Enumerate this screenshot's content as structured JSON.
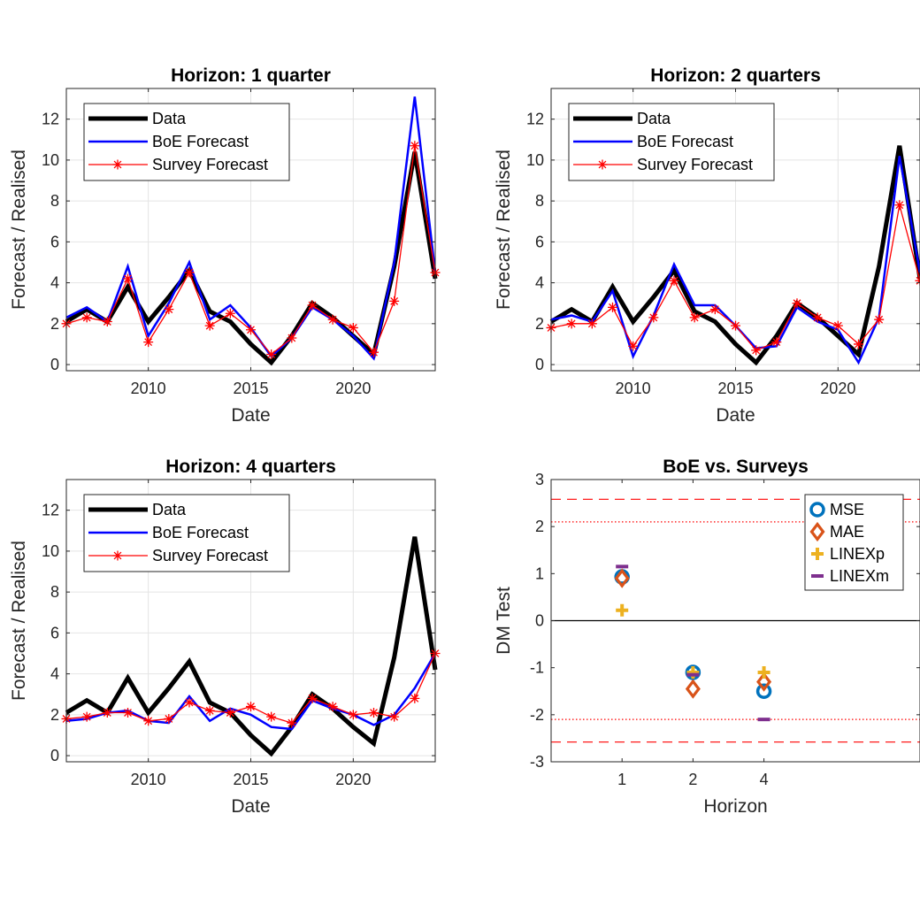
{
  "chart_data": [
    {
      "type": "line",
      "title": "Horizon: 1 quarter",
      "xlabel": "Date",
      "ylabel": "Forecast / Realised",
      "xlim": [
        2006,
        2024
      ],
      "ylim": [
        -0.3,
        13.5
      ],
      "xticks": [
        2010,
        2015,
        2020
      ],
      "yticks": [
        0,
        2,
        4,
        6,
        8,
        10,
        12
      ],
      "grid": true,
      "legend_position": "top-left",
      "x": [
        2006,
        2007,
        2008,
        2009,
        2010,
        2011,
        2012,
        2013,
        2014,
        2015,
        2016,
        2017,
        2018,
        2019,
        2020,
        2021,
        2022,
        2023,
        2024
      ],
      "series": [
        {
          "name": "Data",
          "color": "#000000",
          "style": "thick",
          "values": [
            2.1,
            2.7,
            2.1,
            3.8,
            2.1,
            3.3,
            4.6,
            2.6,
            2.1,
            1.0,
            0.1,
            1.4,
            3.0,
            2.3,
            1.4,
            0.5,
            4.8,
            10.4,
            4.2
          ]
        },
        {
          "name": "BoE Forecast",
          "color": "#0000ff",
          "style": "line",
          "values": [
            2.3,
            2.8,
            2.1,
            4.8,
            1.4,
            3.0,
            5.0,
            2.2,
            2.9,
            1.8,
            0.4,
            1.3,
            2.8,
            2.2,
            1.4,
            0.3,
            5.0,
            13.1,
            4.5
          ]
        },
        {
          "name": "Survey Forecast",
          "color": "#ff0000",
          "style": "star",
          "values": [
            2.0,
            2.3,
            2.1,
            4.2,
            1.1,
            2.7,
            4.5,
            1.9,
            2.5,
            1.7,
            0.5,
            1.3,
            2.9,
            2.2,
            1.8,
            0.6,
            3.1,
            10.7,
            4.5
          ]
        }
      ]
    },
    {
      "type": "line",
      "title": "Horizon: 2 quarters",
      "xlabel": "Date",
      "ylabel": "Forecast / Realised",
      "xlim": [
        2006,
        2024
      ],
      "ylim": [
        -0.3,
        13.5
      ],
      "xticks": [
        2010,
        2015,
        2020
      ],
      "yticks": [
        0,
        2,
        4,
        6,
        8,
        10,
        12
      ],
      "grid": true,
      "legend_position": "top-left",
      "x": [
        2006,
        2007,
        2008,
        2009,
        2010,
        2011,
        2012,
        2013,
        2014,
        2015,
        2016,
        2017,
        2018,
        2019,
        2020,
        2021,
        2022,
        2023,
        2024
      ],
      "series": [
        {
          "name": "Data",
          "color": "#000000",
          "style": "thick",
          "values": [
            2.1,
            2.7,
            2.1,
            3.8,
            2.1,
            3.3,
            4.6,
            2.6,
            2.1,
            1.0,
            0.1,
            1.4,
            3.0,
            2.3,
            1.4,
            0.5,
            4.8,
            10.7,
            4.2
          ]
        },
        {
          "name": "BoE Forecast",
          "color": "#0000ff",
          "style": "line",
          "values": [
            2.2,
            2.4,
            2.1,
            3.6,
            0.4,
            2.4,
            4.9,
            2.9,
            2.9,
            1.9,
            0.8,
            0.9,
            2.8,
            2.1,
            1.7,
            0.1,
            2.3,
            10.2,
            4.5
          ]
        },
        {
          "name": "Survey Forecast",
          "color": "#ff0000",
          "style": "star",
          "values": [
            1.8,
            2.0,
            2.0,
            2.8,
            0.9,
            2.3,
            4.1,
            2.3,
            2.7,
            1.9,
            0.7,
            1.1,
            3.0,
            2.3,
            1.9,
            1.0,
            2.2,
            7.8,
            4.1
          ]
        }
      ]
    },
    {
      "type": "line",
      "title": "Horizon: 4 quarters",
      "xlabel": "Date",
      "ylabel": "Forecast / Realised",
      "xlim": [
        2006,
        2024
      ],
      "ylim": [
        -0.3,
        13.5
      ],
      "xticks": [
        2010,
        2015,
        2020
      ],
      "yticks": [
        0,
        2,
        4,
        6,
        8,
        10,
        12
      ],
      "grid": true,
      "legend_position": "top-left",
      "x": [
        2006,
        2007,
        2008,
        2009,
        2010,
        2011,
        2012,
        2013,
        2014,
        2015,
        2016,
        2017,
        2018,
        2019,
        2020,
        2021,
        2022,
        2023,
        2024
      ],
      "series": [
        {
          "name": "Data",
          "color": "#000000",
          "style": "thick",
          "values": [
            2.1,
            2.7,
            2.1,
            3.8,
            2.1,
            3.3,
            4.6,
            2.6,
            2.1,
            1.0,
            0.1,
            1.4,
            3.0,
            2.3,
            1.4,
            0.6,
            4.8,
            10.7,
            4.2
          ]
        },
        {
          "name": "BoE Forecast",
          "color": "#0000ff",
          "style": "line",
          "values": [
            1.7,
            1.8,
            2.1,
            2.2,
            1.7,
            1.6,
            2.9,
            1.7,
            2.3,
            2.0,
            1.4,
            1.3,
            2.7,
            2.3,
            2.0,
            1.5,
            2.0,
            3.3,
            5.0
          ]
        },
        {
          "name": "Survey Forecast",
          "color": "#ff0000",
          "style": "star",
          "values": [
            1.8,
            1.9,
            2.1,
            2.1,
            1.7,
            1.8,
            2.6,
            2.2,
            2.1,
            2.4,
            1.9,
            1.6,
            2.8,
            2.4,
            2.0,
            2.1,
            1.9,
            2.8,
            5.0
          ]
        }
      ]
    },
    {
      "type": "scatter",
      "title": "BoE vs. Surveys",
      "xlabel": "Horizon",
      "ylabel": "DM Test",
      "xlim": [
        0,
        5.2
      ],
      "ylim": [
        -3,
        3
      ],
      "xticks": [
        1,
        2,
        4
      ],
      "xticklabels": [
        "1",
        "2",
        "4"
      ],
      "x_positions": [
        1,
        2,
        3
      ],
      "yticks": [
        -3,
        -2,
        -1,
        0,
        1,
        2,
        3
      ],
      "grid": false,
      "legend_position": "top-right",
      "reference_lines": [
        {
          "y": 2.58,
          "style": "dashed",
          "color": "#ff0000"
        },
        {
          "y": -2.58,
          "style": "dashed",
          "color": "#ff0000"
        },
        {
          "y": 2.1,
          "style": "dotted",
          "color": "#ff0000"
        },
        {
          "y": -2.1,
          "style": "dotted",
          "color": "#ff0000"
        },
        {
          "y": 0,
          "style": "solid",
          "color": "#000000"
        }
      ],
      "series": [
        {
          "name": "MSE",
          "marker": "circle",
          "color": "#0072bd",
          "values": [
            0.93,
            -1.1,
            -1.5
          ]
        },
        {
          "name": "MAE",
          "marker": "diamond",
          "color": "#d95319",
          "values": [
            0.9,
            -1.45,
            -1.3
          ]
        },
        {
          "name": "LINEXp",
          "marker": "plus",
          "color": "#edb120",
          "values": [
            0.22,
            -1.1,
            -1.1
          ]
        },
        {
          "name": "LINEXm",
          "marker": "bar",
          "color": "#7e2f8e",
          "values": [
            1.15,
            -1.15,
            -2.1
          ]
        }
      ]
    }
  ]
}
